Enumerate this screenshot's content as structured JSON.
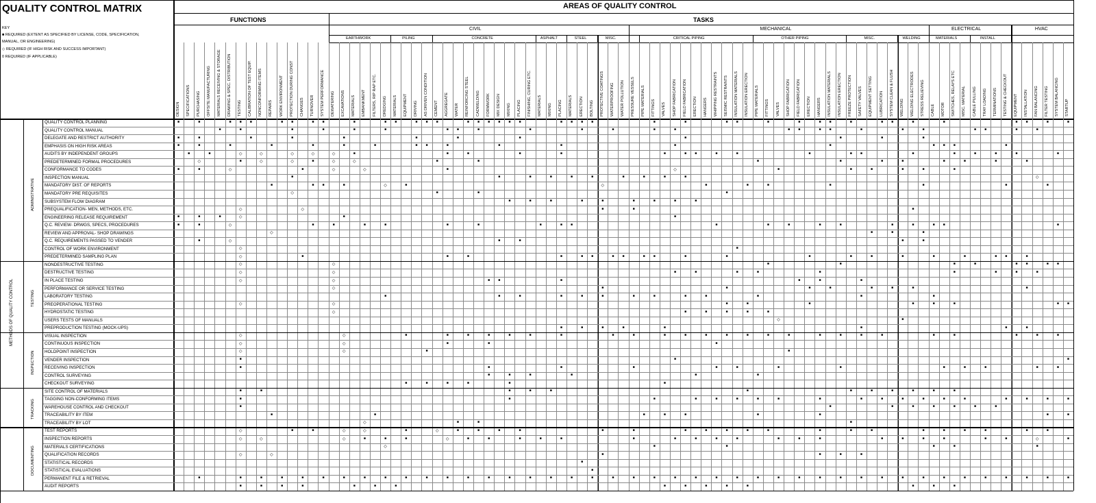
{
  "title": "QUALITY CONTROL MATRIX",
  "areas_title": "AREAS OF QUALITY CONTROL",
  "functions_title": "FUNCTIONS",
  "tasks_title": "TASKS",
  "methods_label": "METHODS OF QUALITY CONTROL",
  "key": {
    "heading": "KEY",
    "lines": [
      "■ REQUIRED (EXTENT AS SPECIFIED BY LICENSE, CODE, SPECIFICATION,",
      "MANUAL, OR ENGINEERING)",
      "◇ REQUIRED (IF HIGH RISK AND SUCCESS IMPORTANT)",
      "0 REQUIRED (IF APPLICABLE)"
    ]
  },
  "functions_columns": [
    "DESIGN",
    "SPECIFICATIONS",
    "PURCHASING",
    "OFFSITE MANUFACTURING",
    "MATERIALS RECEIVING & STORAGE",
    "DRAWING & SPEC. DISTRIBUTION",
    "TESTING",
    "CALIBRATION OF TEST EQUIP.",
    "NONCONFORMING ITEMS",
    "REPAIRS",
    "WORK ENVIRONMENT",
    "PROTECTION DURING CONST",
    "CHANGES",
    "TURNOVER",
    "SYSTEM PERFORMANCE"
  ],
  "disciplines": [
    {
      "name": "CIVIL",
      "groups": [
        {
          "name": "EARTHWORK",
          "cols": [
            "DEWATERING",
            "EXCAVATIONS",
            "MATERIALS",
            "EMBANKMENT",
            "FILTERS, RIP RAP ETC.",
            "DREDGING"
          ]
        },
        {
          "name": "PILING",
          "cols": [
            "MATERIALS",
            "EQUIPMENT",
            "DRIVING",
            "AS DRIVEN CONDITION"
          ]
        },
        {
          "name": "CONCRETE",
          "cols": [
            "CEMENT",
            "AGGREGATE",
            "WATER",
            "REINFORCING STEEL",
            "CADWELDING",
            "FORMWORK",
            "MIX DESIGN",
            "MIXING",
            "PLACING",
            "FINISHING, CURING ETC."
          ]
        },
        {
          "name": "ASPHALT",
          "cols": [
            "MATERIALS",
            "MIXING",
            "PLACING"
          ]
        },
        {
          "name": "STEEL",
          "cols": [
            "MATERIALS",
            "ERECTION",
            "BOLTING"
          ]
        },
        {
          "name": "MISC.",
          "cols": [
            "PROTECTIVE COATINGS",
            "WATERPROOFING",
            "WATER POLLUTION"
          ]
        }
      ]
    },
    {
      "name": "MECHANICAL",
      "groups": [
        {
          "name": "",
          "cols": [
            "PRESSURE VESSELS"
          ]
        },
        {
          "name": "CRITICAL PIPING",
          "cols": [
            "PIPE MATERIALS",
            "FITTINGS",
            "VALVES",
            "SHOP FABRICATION",
            "FIELD FABRICATION",
            "ERECTION",
            "HANGERS",
            "WHIPPING RESTRAINTS",
            "SEISMIC RESTRAINTS",
            "INSULATION MATERIALS",
            "INSULATION ERECTION"
          ]
        },
        {
          "name": "OTHER PIPING",
          "cols": [
            "PIPE MATERIALS",
            "FITTINGS",
            "VALVES",
            "SHOP FABRICATION",
            "FIELD FABRICATION",
            "ERECTION",
            "HANGERS",
            "INSULATION MATERIALS",
            "INSULATION ERECTION"
          ]
        },
        {
          "name": "MISC.",
          "cols": [
            "FREEZE PROTECTION",
            "SAFETY VALVES",
            "EQUIPMENT SETTING",
            "LUBRICATION",
            "SYSTEM CLEAN & FLUSH"
          ]
        },
        {
          "name": "WELDING",
          "cols": [
            "WELDING",
            "WELDING ELECTRODES",
            "STRESS RELIEVING"
          ]
        }
      ]
    },
    {
      "name": "ELECTRICAL",
      "groups": [
        {
          "name": "MATERIALS",
          "cols": [
            "CABLE",
            "MOTOR",
            "SWITCHES, RELAYS ETC",
            "MISC. MATERIAL"
          ]
        },
        {
          "name": "INSTALL",
          "cols": [
            "CABLE PULLING",
            "TRAY LOADING",
            "TERMINATIONS",
            "TESTING & CHECKOUT"
          ]
        }
      ]
    },
    {
      "name": "HVAC",
      "groups": [
        {
          "name": "",
          "cols": [
            "EQUIPMENT",
            "INSTALLATION",
            "FAN BALANCING",
            "FILTER TESTING",
            "SYSTEM BALANCING",
            "STARTUP"
          ]
        }
      ]
    }
  ],
  "sections": [
    {
      "name": "ADMINISTRATIVE",
      "rows": [
        "QUALITY CONTROL PLANNING",
        "QUALITY CONTROL MANUAL",
        "DELEGATE AND RESTRICT AUTHORITY",
        "EMPHASIS ON HIGH RISK AREAS",
        "AUDITS BY INDEPENDENT GROUPS",
        "PREDETERMINED FORMAL PROCEDURES",
        "CONFORMANCE TO CODES",
        "INSPECTION MANUAL",
        "MANDATORY DIST. OF REPORTS",
        "MANDATORY PRE REQUISITES",
        "SUBSYSTEM FLOW DIAGRAM",
        "PREQUALIFICATION- MEN, METHODS, ETC.",
        "ENGINEERING RELEASE REQUIREMENT",
        "Q.C. REVIEW- DRWGS, SPECS, PROCEDURES",
        "REVIEW AND APPROVAL- SHOP DRAWINGS",
        "Q.C. REQUIREMENTS PASSED TO VENDER",
        "CONTROL OF WORK ENVIRONMENT",
        "PREDETERMINED SAMPLING PLAN"
      ]
    },
    {
      "name": "TESTING",
      "rows": [
        "NONDESTRUCTIVE TESTING",
        "DESTRUCTIVE TESTING",
        "IN PLACE TESTING",
        "PERFORMANCE OR SERVICE TESTING",
        "LABORATORY TESTING",
        "PREOPERATIONAL TESTING",
        "HYDROSTATIC TESTING",
        "USERS TESTS OF MANUALS",
        "PREPRODUCTION TESTING (MOCK-UPS)"
      ]
    },
    {
      "name": "INSPECTION",
      "rows": [
        "VISUAL INSPECTION",
        "CONTINUOUS INSPECTION",
        "HOLDPOINT INSPECTION",
        "VENDER INSPECTION",
        "RECEIVING INSPECTION",
        "CONTROL SURVEYING",
        "CHECKOUT SURVEYING"
      ]
    },
    {
      "name": "TRACKING",
      "rows": [
        "SITE CONTROL OF MATERIALS",
        "TAGGING NON-CONFORMING ITEMS",
        "WAREHOUSE CONTROL AND CHECKOUT",
        "TRACEABILITY BY ITEM",
        "TRACEABILITY BY LOT"
      ]
    },
    {
      "name": "DOCUMENTING",
      "rows": [
        "TEST REPORTS",
        "INSPECTION REPORTS",
        "MATERIALS CERTIFICATIONS",
        "QUALIFICATION RECORDS",
        "STATISTICAL RECORDS",
        "STATISTICAL EVALUATIONS",
        "PERMANENT FILE & RETRIEVAL",
        "AUDIT REPORTS"
      ]
    }
  ],
  "marks": [
    "s.s..sss..ss.ss..s..ss.sss..ssssss...ssss.....s..s...ss..s..s.ss.s..ss.s..s......ss.s.s.s...........s...s...........sss...s...s......s",
    "....s.s....s..s..s..s.....ss.s....s....s..s...s.s..........ss.ss..s...s.s....ss..s.s......s....s..s....s......s.s...........s......s.",
    "s.s....s...s....s......s...s.....s...............s..............s...s...s..................s.....s........s..s...........s...........",
    "s.s..s...s...s..s..s...ss.s....s.....s..........s..............s.........sss....s......s.s......ss.s........s...s.........s.......s...",
    ".s.s..o.o..o.o.o.s........s.s....s...s.........s.ss.s.s......s...ss....s...s.s.s.s...s.s.....ss.s.s.....o.s....ss..s...s..s.s..s.....",
    "..o...s.o..o.s.o.o.......s...s..........................s.......s...s.s...s.s..s..s....s.....s.....o..o...s.s.s.s......s...s.s..s.s.",
    "s.s..o......s..o..o.......s.....................o.........s......s.s..s.s..s.......................s.........s....s.......s.........",
    "...........s...................s..s.s.s.s..s.s.s.s.................................o.................s......s.......................",
    ".........s...ss.s...o.s..................o.........s...s.s.....s........s.......s...s...........s....s...s........s..s........s.....s",
    "...........o.............s...s.......................s......................................................................o......",
    "................................s.s.s..s.s..s.s.s.s................................................................................",
    "......o.....o............................s..s..........................s.....................................s.........................",
    "s.s.s.o.........s...............................s.........................................s.....o.....s.......................s......",
    "s.s..o.......s.s..s.s.....s..s.....s.ss.............s....s.s..s.s....s.s.ss..........s.s....s..s.....s..s..s...s.s.s..s.s..........s",
    ".........o.........................................................s.s..s.....................................................s..s.s",
    "..s..o.........................s.s....................................s.s...................................................s....",
    "......o...............................................s......................................................o.............",
    "......o.....s.............s.s........s.ss.ss.ss..s...s.......s...s.s..s..s..s..ss.s....s.s.....s.s...s.s......s....s.........s.....",
    "......o........o.........................................s......s..........s.s...ss.ss....s.s.s.........o..s.............",
    "......o........o................................s.s...s.s.....s............s...s.s.s....................................",
    "......o........o..............ss.....s......................s.s...s...........................s.s......................s...s.s.s",
    "...............o.........................s...........s.......s.s...s.s.s..........s....s.s.s.s.....s....s..........................",
    "....................s..........s.s...s.s.s..s.s..s.s....s.........s......s........................s......o....s.....................",
    "......o........o.....................................s.s.....s.........s.s.s.........ss.s....s.s..s...s..s....s.....s.s.s....s.s.s.s",
    "...............o.................................s.s.s.s.s...............................o.o.o.o.o.o..s......................",
    "..........................................................o...........s..............................................................",
    ".....................................s.s.s.s...s..................s.............s.s....................................................",
    "......o.........o.....s...s.s.s.s.s..s....s.s..s.s.s.s.s.s.s..s.s.s.s....s.s.....s.s.s.s.....s.s.s.s.s.s.s.s...........s.s....s.s....s",
    "......o.........o.........s...s.....................s........................................................s......................",
    "......o.........o.......s..................................s...........................s.s.s.....................o.............s...",
    "......s.........................................s.....................................s............s.s...........s.............",
    "......s.......................s......s......s.......s.s...s.....s.........s.s.s....s.s........s..............s.s...........s.........",
    "..............................s.s.s...s...........s.....s.............................................................................",
    "......................s.s.s.s...s..............s.............................................................................",
    "......s.s.......................s.s.s..................s.........s.s.s.s.s.s...........s.s.s.s.s.s.s...s.........s.....s.........s.....",
    "......s.........................s.............s...s.s.s.s.s...s...s.s.s.s.s.s...s.s.s.s.s.s.s.s..s...........s.....s....s..........",
    "......s........................................................s.....s.s.s.s.s.s........s.........s....s.s.........................",
    ".........s.........s.........................s.s.s......s.....s.....................s.s.s.s.s..s...........s..s.s...s.s.s...s.s.s.",
    "..................o........s.s...................................s.........................................s..........................",
    "......o....s.s..o.o...s..o.s.s.s.s.......s..s....s.s.s.s.s....s..s.s....s.s.s.s...s.s..s..s...s.s.s.s.......s.s.s.s.s.....s.s.s.s.s.s.s",
    "......o.o.......o.s.s.s...o.s.s..s.s.s......s...s.s.s.s...s.s.s.....s.s.s.s...s.s..o..s.s.s.s.......s.......s...s.s.s......s.s.s.s.s.s",
    "....................o.........................s......s...................s.s.......s..........s.......................s...........s.",
    "......o..o...............................s....................s.s.s............................................s....................",
    ".......................................s.....................................................................................",
    "........................................s...................................................................................",
    "..s...s.s.s.s.s.s.s.s.s.s.s.s.s.s.s.s.s.s.s.s.s.s.s.s.s.s.s.s.s.s.s.s.s.s.s.s.s.s.s.s.s.s.s.s.s.s.s.s.s.s.s.s.s.s.s.s.s.s.s.s.s.s.s.s",
    "......s.s.s.s....s.s.s.........................s.s.s.s.s...............s.s.s...........s.s.s........s......s.s.s.s.s.s.s.s.s.s.s.s.s"
  ]
}
